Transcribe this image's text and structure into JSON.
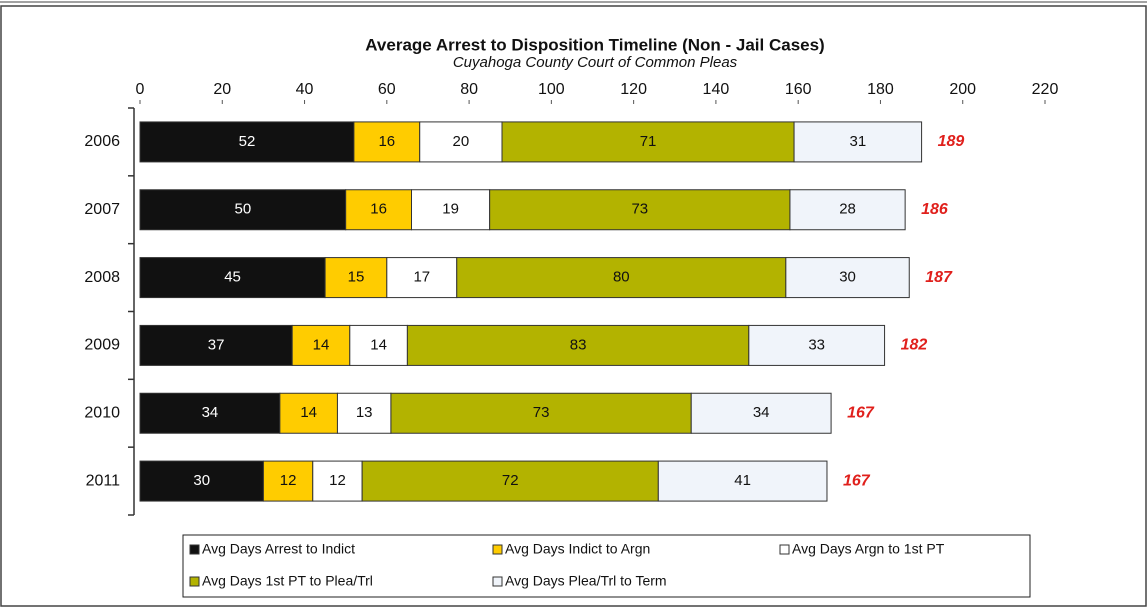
{
  "chart_data": {
    "type": "stacked_barh",
    "title": "Average Arrest to Disposition  Timeline (Non - Jail Cases)",
    "subtitle": "Cuyahoga County Court of Common Pleas",
    "categories": [
      "2006",
      "2007",
      "2008",
      "2009",
      "2010",
      "2011"
    ],
    "series": [
      {
        "name": "Avg Days Arrest to Indict",
        "color": "#111111",
        "values": [
          52,
          50,
          45,
          37,
          34,
          30
        ]
      },
      {
        "name": "Avg Days Indict to Argn",
        "color": "#ffcc00",
        "values": [
          16,
          16,
          15,
          14,
          14,
          12
        ]
      },
      {
        "name": "Avg Days Argn to 1st PT",
        "color": "#ffffff",
        "values": [
          20,
          19,
          17,
          14,
          13,
          12
        ]
      },
      {
        "name": "Avg Days 1st PT to Plea/Trl",
        "color": "#b3b300",
        "values": [
          71,
          73,
          80,
          83,
          73,
          72
        ]
      },
      {
        "name": "Avg Days Plea/Trl to Term",
        "color": "#f0f4fa",
        "values": [
          31,
          28,
          30,
          33,
          34,
          41
        ]
      }
    ],
    "totals": [
      189,
      186,
      187,
      182,
      167,
      167
    ],
    "xlim": [
      0,
      220
    ],
    "xticks": [
      0,
      20,
      40,
      60,
      80,
      100,
      120,
      140,
      160,
      180,
      200,
      220
    ]
  }
}
